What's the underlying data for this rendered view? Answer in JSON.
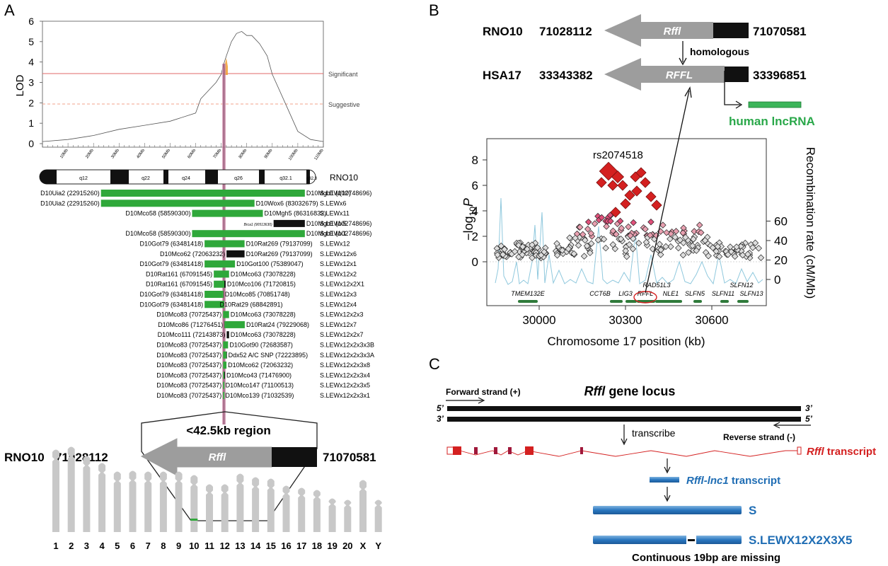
{
  "panel_labels": {
    "a": "A",
    "b": "B",
    "c": "C"
  },
  "panel_a": {
    "lod_chart": {
      "ylabel": "LOD",
      "yticks": [
        "0",
        "1",
        "2",
        "3",
        "4",
        "5",
        "6"
      ],
      "xticks": [
        "10Mb",
        "20Mb",
        "30Mb",
        "40Mb",
        "50Mb",
        "60Mb",
        "70Mb",
        "80Mb",
        "90Mb",
        "100Mb",
        "110Mb"
      ],
      "significant_label": "Significant",
      "suggestive_label": "Suggestive"
    },
    "chromosome": {
      "name": "RNO10",
      "bands": [
        "q12",
        "q22",
        "q24",
        "q26",
        "q32.1",
        "q32.3"
      ]
    },
    "congenic_strains": [
      {
        "left": "D10Uia2 (22915260)",
        "right": "D10Mgh1 (102748696)",
        "strain": "S.LEW(10)"
      },
      {
        "left": "D10Uia2 (22915260)",
        "right": "D10Wox6 (83032679)",
        "strain": "S.LEWx6"
      },
      {
        "left": "D10Mco58 (58590300)",
        "right": "D10Mgh5 (86316832)",
        "strain": "S.LEWx11"
      },
      {
        "left": "Brca1 (90513630)",
        "right": "D10Mgh1 (102748696)",
        "strain": "S.LEWx5"
      },
      {
        "left": "D10Mco58 (58590300)",
        "right": "D10Mgh1 (102748696)",
        "strain": "S.LEWx1"
      },
      {
        "left": "D10Got79 (63481418)",
        "right": "D10Rat269 (79137099)",
        "strain": "S.LEWx12"
      },
      {
        "left": "D10Mco62 (72063232)",
        "right": "D10Rat269 (79137099)",
        "strain": "S.LEWx12x6"
      },
      {
        "left": "D10Got79 (63481418)",
        "right": "D10Got100 (75389047)",
        "strain": "S.LEWx12x1"
      },
      {
        "left": "D10Rat161 (67091545)",
        "right": "D10Mco63 (73078228)",
        "strain": "S.LEWx12x2"
      },
      {
        "left": "D10Rat161 (67091545)",
        "right": "D10Mco106 (71720815)",
        "strain": "S.LEWx12x2X1"
      },
      {
        "left": "D10Got79 (63481418)",
        "right": "D10Mco85 (70851748)",
        "strain": "S.LEWx12x3"
      },
      {
        "left": "D10Got79 (63481418)",
        "right": "D10Rat29 (68842891)",
        "strain": "S.LEWx12x4"
      },
      {
        "left": "D10Mco83 (70725437)",
        "right": "D10Mco63 (73078228)",
        "strain": "S.LEWx12x2x3"
      },
      {
        "left": "D10Mco86 (71276451)",
        "right": "D10Rat24 (79229068)",
        "strain": "S.LEWx12x7"
      },
      {
        "left": "D10Mco111 (72143873)",
        "right": "D10Mco63 (73078228)",
        "strain": "S.LEWx12x2x7"
      },
      {
        "left": "D10Mco83 (70725437)",
        "right": "D10Got90 (72683587)",
        "strain": "S.LEWx12x2x3x3B"
      },
      {
        "left": "D10Mco83 (70725437)",
        "right": "Ddx52 A/C SNP (72223895)",
        "strain": "S.LEWx12x2x3x3A"
      },
      {
        "left": "D10Mco83 (70725437)",
        "right": "D10Mco62 (72063232)",
        "strain": "S.LEWx12x2x3x8"
      },
      {
        "left": "D10Mco83 (70725437)",
        "right": "D10Mco43 (71476900)",
        "strain": "S.LEWx12x2x3x4"
      },
      {
        "left": "D10Mco83 (70725437)",
        "right": "D10Mco147 (71100513)",
        "strain": "S.LEWx12x2x3x5"
      },
      {
        "left": "D10Mco83 (70725437)",
        "right": "D10Mco139 (71032539)",
        "strain": "S.LEWx12x2x3x1"
      }
    ],
    "region_label": "<42.5kb region",
    "locus": {
      "chrom": "RNO10",
      "start": "71028112",
      "gene": "Rffl",
      "end": "71070581"
    },
    "karyotype": [
      "1",
      "2",
      "3",
      "4",
      "5",
      "6",
      "7",
      "8",
      "9",
      "10",
      "11",
      "12",
      "13",
      "14",
      "15",
      "16",
      "17",
      "18",
      "19",
      "20",
      "X",
      "Y"
    ]
  },
  "panel_b": {
    "rat": {
      "chrom": "RNO10",
      "start": "71028112",
      "gene": "Rffl",
      "end": "71070581"
    },
    "homologous": "homologous",
    "human": {
      "chrom": "HSA17",
      "start": "33343382",
      "gene": "RFFL",
      "end": "33396851"
    },
    "lncrna": "human lncRNA",
    "locuszoom": {
      "snp": "rs2074518",
      "yleft_label": "-log10P",
      "yright_label": "Recombination rate (cM/Mb)",
      "xlabel": "Chromosome 17 position (kb)",
      "yleft_ticks": [
        "0",
        "2",
        "4",
        "6",
        "8"
      ],
      "yright_ticks": [
        "0",
        "20",
        "40",
        "60"
      ],
      "xticks": [
        "30000",
        "30300",
        "30600"
      ],
      "genes": [
        "TMEM132E",
        "CCT6B",
        "LIG3",
        "RFFL",
        "RAD51L3",
        "NLE1",
        "SLFN5",
        "SLFN11",
        "SLFN12",
        "SLFN13"
      ]
    }
  },
  "panel_c": {
    "title_gene": "Rffl",
    "title_rest": " gene locus",
    "forward": "Forward strand (+)",
    "reverse": "Reverse strand (-)",
    "five": "5’",
    "three": "3’",
    "transcribe": "transcribe",
    "rffl_gene": "Rffl",
    "rffl_transcript": " transcript",
    "lnc_gene": "Rffl-lnc1",
    "lnc_transcript": " transcript",
    "s_label": "S",
    "x5_label": "S.LEWX12X2X3X5",
    "missing": "Continuous 19bp are missing"
  },
  "chart_data": {
    "type": "line",
    "title": "",
    "xlabel": "",
    "ylabel": "LOD",
    "x_unit": "Mb",
    "x": [
      0,
      10,
      20,
      30,
      40,
      50,
      60,
      62,
      65,
      68,
      70,
      71,
      72,
      74,
      76,
      78,
      80,
      82,
      85,
      88,
      90,
      95,
      100,
      105,
      110
    ],
    "series": [
      {
        "name": "",
        "values": [
          0.1,
          0.2,
          0.4,
          0.7,
          0.9,
          1.1,
          1.5,
          2.2,
          2.6,
          3.0,
          3.4,
          3.9,
          4.3,
          5.0,
          5.4,
          5.5,
          5.3,
          5.3,
          4.9,
          4.3,
          3.4,
          2.0,
          0.6,
          0.2,
          0.1
        ]
      }
    ],
    "thresholds": {
      "significant": 3.45,
      "suggestive": 2.0
    },
    "xlim": [
      0,
      110
    ],
    "ylim": [
      0,
      6
    ]
  }
}
